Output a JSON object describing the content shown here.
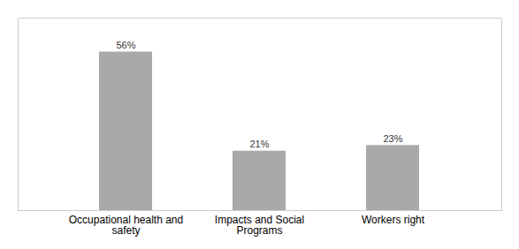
{
  "chart_data": {
    "type": "bar",
    "categories": [
      "Occupational health and\nsafety",
      "Impacts and Social\nPrograms",
      "Workers right"
    ],
    "values": [
      56,
      21,
      23
    ],
    "value_labels": [
      "56%",
      "21%",
      "23%"
    ],
    "data_labels": true,
    "color": "#a9a9a9",
    "ylim": [
      0,
      68
    ],
    "tick_labels": "x"
  }
}
